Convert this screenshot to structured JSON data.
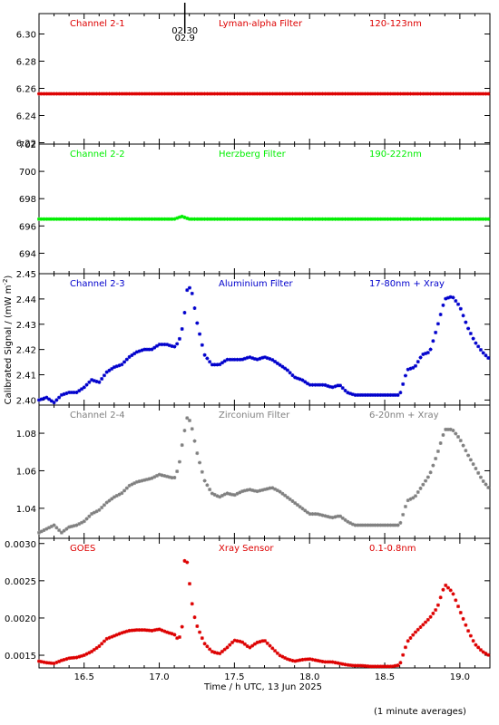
{
  "figure": {
    "xlabel": "Time / h UTC, 13 Jun 2025",
    "ylabel": "Calibrated Signal / (mW m",
    "ylabel_sup": "-2",
    "ylabel_end": ")",
    "footer": "(1 minute averages)",
    "marker_label_top": "02:30",
    "marker_label_bottom": "02.9"
  },
  "chart_data": [
    {
      "type": "scatter",
      "name": "Channel 2-1",
      "labels": [
        "Channel 2-1",
        "Lyman-alpha Filter",
        "120-123nm"
      ],
      "color": "#dd0000",
      "xlim": [
        16.2,
        19.2
      ],
      "ylim": [
        6.219,
        6.315
      ],
      "yticks": [
        6.22,
        6.24,
        6.26,
        6.28,
        6.3
      ],
      "ytick_labels": [
        "6.22",
        "6.24",
        "6.26",
        "6.28",
        "6.30"
      ],
      "xticks": [
        16.5,
        17.0,
        17.5,
        18.0,
        18.5,
        19.0
      ],
      "xtick_labels": [
        "16.5",
        "17.0",
        "17.5",
        "18.0",
        "18.5",
        "19.0"
      ],
      "series": [
        {
          "x": [
            16.2,
            19.2
          ],
          "y": [
            6.256,
            6.256
          ]
        }
      ],
      "marker_x": 17.17
    },
    {
      "type": "scatter",
      "name": "Channel 2-2",
      "labels": [
        "Channel 2-2",
        "Herzberg Filter",
        "190-222nm"
      ],
      "color": "#00ee00",
      "xlim": [
        16.2,
        19.2
      ],
      "ylim": [
        692.5,
        702.0
      ],
      "yticks": [
        694,
        696,
        698,
        700,
        702
      ],
      "ytick_labels": [
        "694",
        "696",
        "698",
        "700",
        "702"
      ],
      "xticks": [
        16.5,
        17.0,
        17.5,
        18.0,
        18.5,
        19.0
      ],
      "xtick_labels": [
        "16.5",
        "17.0",
        "17.5",
        "18.0",
        "18.5",
        "19.0"
      ],
      "series": [
        {
          "x": [
            16.2,
            17.1,
            17.15,
            17.2,
            19.2
          ],
          "y": [
            696.5,
            696.5,
            696.7,
            696.5,
            696.5
          ]
        }
      ]
    },
    {
      "type": "scatter",
      "name": "Channel 2-3",
      "labels": [
        "Channel 2-3",
        "Aluminium Filter",
        "17-80nm + Xray"
      ],
      "color": "#0000cc",
      "xlim": [
        16.2,
        19.2
      ],
      "ylim": [
        2.398,
        2.45
      ],
      "yticks": [
        2.4,
        2.41,
        2.42,
        2.43,
        2.44,
        2.45
      ],
      "ytick_labels": [
        "2.40",
        "2.41",
        "2.42",
        "2.43",
        "2.44",
        "2.45"
      ],
      "xticks": [
        16.5,
        17.0,
        17.5,
        18.0,
        18.5,
        19.0
      ],
      "xtick_labels": [
        "16.5",
        "17.0",
        "17.5",
        "18.0",
        "18.5",
        "19.0"
      ],
      "series": [
        {
          "x": [
            16.2,
            16.25,
            16.3,
            16.35,
            16.4,
            16.45,
            16.5,
            16.55,
            16.6,
            16.65,
            16.7,
            16.75,
            16.8,
            16.85,
            16.9,
            16.95,
            17.0,
            17.05,
            17.1,
            17.13,
            17.16,
            17.19,
            17.22,
            17.25,
            17.3,
            17.35,
            17.4,
            17.45,
            17.5,
            17.55,
            17.6,
            17.65,
            17.7,
            17.75,
            17.8,
            17.85,
            17.9,
            17.95,
            18.0,
            18.05,
            18.1,
            18.15,
            18.2,
            18.25,
            18.3,
            18.35,
            18.4,
            18.45,
            18.5,
            18.55,
            18.6,
            18.65,
            18.7,
            18.75,
            18.8,
            18.85,
            18.9,
            18.95,
            19.0,
            19.05,
            19.1,
            19.15,
            19.2
          ],
          "y": [
            2.4,
            2.401,
            2.399,
            2.402,
            2.403,
            2.403,
            2.405,
            2.408,
            2.407,
            2.411,
            2.413,
            2.414,
            2.417,
            2.419,
            2.42,
            2.42,
            2.422,
            2.422,
            2.421,
            2.423,
            2.43,
            2.446,
            2.442,
            2.431,
            2.418,
            2.414,
            2.414,
            2.416,
            2.416,
            2.416,
            2.417,
            2.416,
            2.417,
            2.416,
            2.414,
            2.412,
            2.409,
            2.408,
            2.406,
            2.406,
            2.406,
            2.405,
            2.406,
            2.403,
            2.402,
            2.402,
            2.402,
            2.402,
            2.402,
            2.402,
            2.402,
            2.412,
            2.413,
            2.418,
            2.419,
            2.429,
            2.44,
            2.441,
            2.437,
            2.429,
            2.423,
            2.419,
            2.416
          ]
        }
      ]
    },
    {
      "type": "scatter",
      "name": "Channel 2-4",
      "labels": [
        "Channel 2-4",
        "Zirconium Filter",
        "6-20nm + Xray"
      ],
      "color": "#808080",
      "xlim": [
        16.2,
        19.2
      ],
      "ylim": [
        1.024,
        1.095
      ],
      "yticks": [
        1.04,
        1.06,
        1.08
      ],
      "ytick_labels": [
        "1.04",
        "1.06",
        "1.08"
      ],
      "xticks": [
        16.5,
        17.0,
        17.5,
        18.0,
        18.5,
        19.0
      ],
      "xtick_labels": [
        "16.5",
        "17.0",
        "17.5",
        "18.0",
        "18.5",
        "19.0"
      ],
      "series": [
        {
          "x": [
            16.2,
            16.25,
            16.3,
            16.35,
            16.4,
            16.45,
            16.5,
            16.55,
            16.6,
            16.65,
            16.7,
            16.75,
            16.8,
            16.85,
            16.9,
            16.95,
            17.0,
            17.05,
            17.1,
            17.13,
            17.16,
            17.19,
            17.22,
            17.25,
            17.3,
            17.35,
            17.4,
            17.45,
            17.5,
            17.55,
            17.6,
            17.65,
            17.7,
            17.75,
            17.8,
            17.85,
            17.9,
            17.95,
            18.0,
            18.05,
            18.1,
            18.15,
            18.2,
            18.25,
            18.3,
            18.35,
            18.4,
            18.45,
            18.5,
            18.55,
            18.6,
            18.65,
            18.7,
            18.75,
            18.8,
            18.85,
            18.9,
            18.95,
            19.0,
            19.05,
            19.1,
            19.15,
            19.2
          ],
          "y": [
            1.027,
            1.029,
            1.031,
            1.027,
            1.03,
            1.031,
            1.033,
            1.037,
            1.039,
            1.043,
            1.046,
            1.048,
            1.052,
            1.054,
            1.055,
            1.056,
            1.058,
            1.057,
            1.056,
            1.062,
            1.078,
            1.09,
            1.082,
            1.07,
            1.055,
            1.048,
            1.046,
            1.048,
            1.047,
            1.049,
            1.05,
            1.049,
            1.05,
            1.051,
            1.049,
            1.046,
            1.043,
            1.04,
            1.037,
            1.037,
            1.036,
            1.035,
            1.036,
            1.033,
            1.031,
            1.031,
            1.031,
            1.031,
            1.031,
            1.031,
            1.031,
            1.044,
            1.046,
            1.052,
            1.058,
            1.069,
            1.082,
            1.082,
            1.077,
            1.069,
            1.062,
            1.055,
            1.05
          ]
        }
      ]
    },
    {
      "type": "scatter",
      "name": "GOES",
      "labels": [
        "GOES",
        "Xray Sensor",
        "0.1-0.8nm"
      ],
      "color": "#dd0000",
      "xlim": [
        16.2,
        19.2
      ],
      "ylim": [
        0.00133,
        0.00307
      ],
      "yticks": [
        0.0015,
        0.002,
        0.0025,
        0.003
      ],
      "ytick_labels": [
        "0.0015",
        "0.0020",
        "0.0025",
        "0.0030"
      ],
      "xticks": [
        16.5,
        17.0,
        17.5,
        18.0,
        18.5,
        19.0
      ],
      "xtick_labels": [
        "16.5",
        "17.0",
        "17.5",
        "18.0",
        "18.5",
        "19.0"
      ],
      "series": [
        {
          "x": [
            16.2,
            16.25,
            16.3,
            16.35,
            16.4,
            16.45,
            16.5,
            16.55,
            16.6,
            16.65,
            16.7,
            16.75,
            16.8,
            16.85,
            16.9,
            16.95,
            17.0,
            17.05,
            17.1,
            17.13,
            17.16,
            17.17,
            17.19,
            17.21,
            17.23,
            17.25,
            17.3,
            17.35,
            17.4,
            17.45,
            17.5,
            17.55,
            17.6,
            17.65,
            17.7,
            17.75,
            17.8,
            17.85,
            17.9,
            17.95,
            18.0,
            18.05,
            18.1,
            18.15,
            18.2,
            18.25,
            18.3,
            18.35,
            18.4,
            18.45,
            18.5,
            18.55,
            18.6,
            18.65,
            18.7,
            18.75,
            18.8,
            18.85,
            18.9,
            18.95,
            19.0,
            19.05,
            19.1,
            19.15,
            19.2
          ],
          "y": [
            0.00142,
            0.0014,
            0.00139,
            0.00143,
            0.00146,
            0.00147,
            0.0015,
            0.00155,
            0.00162,
            0.00172,
            0.00176,
            0.0018,
            0.00183,
            0.00184,
            0.00184,
            0.00183,
            0.00185,
            0.00181,
            0.00178,
            0.0017,
            0.00195,
            0.0029,
            0.0027,
            0.0023,
            0.00205,
            0.0019,
            0.00166,
            0.00155,
            0.00152,
            0.0016,
            0.0017,
            0.00168,
            0.0016,
            0.00167,
            0.0017,
            0.0016,
            0.0015,
            0.00145,
            0.00142,
            0.00144,
            0.00145,
            0.00143,
            0.00141,
            0.00141,
            0.00139,
            0.00137,
            0.00136,
            0.00136,
            0.00135,
            0.00135,
            0.00135,
            0.00135,
            0.00137,
            0.00168,
            0.0018,
            0.0019,
            0.002,
            0.00214,
            0.00245,
            0.00235,
            0.0021,
            0.00185,
            0.00165,
            0.00155,
            0.00149
          ]
        }
      ]
    }
  ]
}
